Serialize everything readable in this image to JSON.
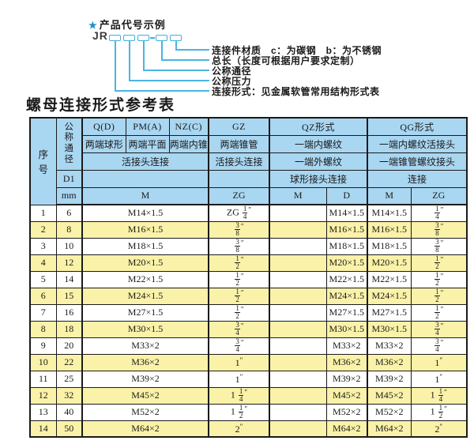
{
  "diagram": {
    "star": "★",
    "heading": "产品代号示例",
    "prefix": "JR",
    "labels": [
      "连接件材质　c：为碳钢　b：为不锈钢",
      "总长（长度可根据用户要求定制）",
      "公称通径",
      "公称压力",
      "连接形式：见金属软管常用结构形式表"
    ],
    "colors": {
      "line": "#4ab5e2",
      "box_border": "#3fb0e0",
      "star": "#1d8ecd"
    }
  },
  "table": {
    "title": "螺母连接形式参考表",
    "colors": {
      "header_bg": "#a9d6f1",
      "row_alt_bg": "#faf2a8",
      "border": "#1b1b1b"
    },
    "header": {
      "col_no": "序号",
      "col_dn": "公称通径",
      "d1": "D1",
      "mm": "mm",
      "q_code": "Q(D)",
      "q_ends": "两端球形",
      "pm_code": "PM(A)",
      "pm_ends": "两端平面",
      "nz_code": "NZ(C)",
      "nz_ends": "两端内锥",
      "gz_code": "GZ",
      "gz_ends": "两端锥管",
      "gz_joint": "活接头连接",
      "gz_unit": "ZG",
      "qz_code": "QZ形式",
      "qz_ends": "一端内螺纹",
      "qz_joint": "一端外螺纹",
      "qz_conn": "球形接头连接",
      "qz_unit_m": "M",
      "qz_unit_d": "D",
      "qg_code": "QG形式",
      "qg_ends": "一端内螺纹活接头",
      "qg_joint": "一端锥管螺纹接头",
      "qg_conn": "连接",
      "qg_unit_m": "M",
      "qg_unit_zg": "ZG",
      "qpn_joint": "活接头连接",
      "qpn_unit": "M"
    },
    "rows": [
      [
        "1",
        "6",
        "M14×1.5",
        "ZG 1/4\"",
        "",
        "M14×1.5",
        "M14×1.5",
        "1/4\""
      ],
      [
        "2",
        "8",
        "M16×1.5",
        "3/8\"",
        "",
        "M16×1.5",
        "M16×1.5",
        "3/8\""
      ],
      [
        "3",
        "10",
        "M18×1.5",
        "3/8\"",
        "",
        "M18×1.5",
        "M18×1.5",
        "3/8\""
      ],
      [
        "4",
        "12",
        "M20×1.5",
        "1/2\"",
        "",
        "M20×1.5",
        "M20×1.5",
        "1/2\""
      ],
      [
        "5",
        "14",
        "M22×1.5",
        "1/2\"",
        "",
        "M22×1.5",
        "M22×1.5",
        "1/2\""
      ],
      [
        "6",
        "15",
        "M24×1.5",
        "1/2\"",
        "",
        "M24×1.5",
        "M24×1.5",
        "1/2\""
      ],
      [
        "7",
        "16",
        "M27×1.5",
        "1/2\"",
        "",
        "M27×1.5",
        "M27×1.5",
        "1/2\""
      ],
      [
        "8",
        "18",
        "M30×1.5",
        "3/4\"",
        "",
        "M30×1.5",
        "M30×1.5",
        "3/4\""
      ],
      [
        "9",
        "20",
        "M33×2",
        "3/4\"",
        "",
        "M33×2",
        "M33×2",
        "3/4\""
      ],
      [
        "10",
        "22",
        "M36×2",
        "1\"",
        "",
        "M36×2",
        "M36×2",
        "1\""
      ],
      [
        "11",
        "25",
        "M39×2",
        "1\"",
        "",
        "M39×2",
        "M39×2",
        "1\""
      ],
      [
        "12",
        "32",
        "M45×2",
        "1 1/4\"",
        "",
        "M45×2",
        "M45×2",
        "1 1/4\""
      ],
      [
        "13",
        "40",
        "M52×2",
        "1 1/2\"",
        "",
        "M52×2",
        "M52×2",
        "1 1/2\""
      ],
      [
        "14",
        "50",
        "M64×2",
        "2\"",
        "",
        "M64×2",
        "M64×2",
        "2\""
      ]
    ]
  }
}
